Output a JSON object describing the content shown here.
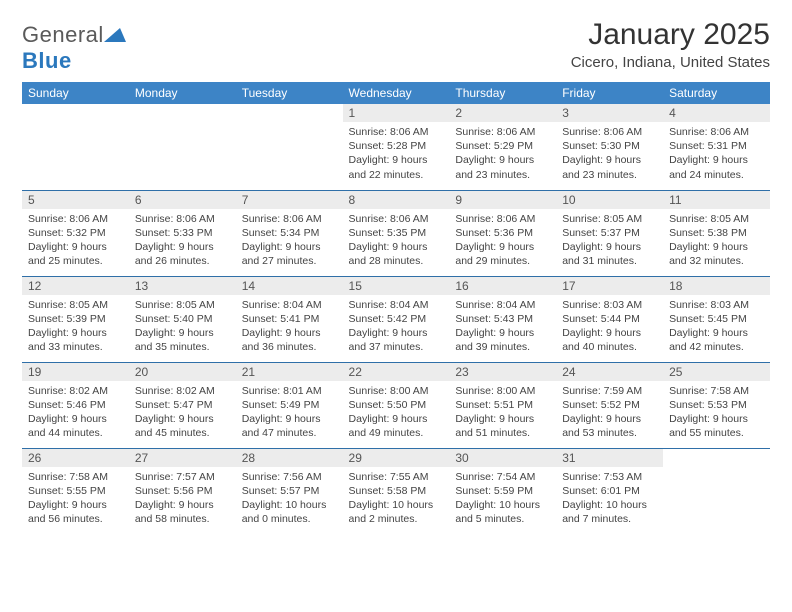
{
  "logo": {
    "part1": "General",
    "part2": "Blue",
    "triangle_color": "#2b78bd"
  },
  "title": "January 2025",
  "location": "Cicero, Indiana, United States",
  "header_bg": "#3d84c6",
  "daynum_bg": "#ececec",
  "border_color": "#2f6fa8",
  "weekdays": [
    "Sunday",
    "Monday",
    "Tuesday",
    "Wednesday",
    "Thursday",
    "Friday",
    "Saturday"
  ],
  "weeks": [
    [
      null,
      null,
      null,
      {
        "n": "1",
        "sunrise": "8:06 AM",
        "sunset": "5:28 PM",
        "daylight": "9 hours and 22 minutes."
      },
      {
        "n": "2",
        "sunrise": "8:06 AM",
        "sunset": "5:29 PM",
        "daylight": "9 hours and 23 minutes."
      },
      {
        "n": "3",
        "sunrise": "8:06 AM",
        "sunset": "5:30 PM",
        "daylight": "9 hours and 23 minutes."
      },
      {
        "n": "4",
        "sunrise": "8:06 AM",
        "sunset": "5:31 PM",
        "daylight": "9 hours and 24 minutes."
      }
    ],
    [
      {
        "n": "5",
        "sunrise": "8:06 AM",
        "sunset": "5:32 PM",
        "daylight": "9 hours and 25 minutes."
      },
      {
        "n": "6",
        "sunrise": "8:06 AM",
        "sunset": "5:33 PM",
        "daylight": "9 hours and 26 minutes."
      },
      {
        "n": "7",
        "sunrise": "8:06 AM",
        "sunset": "5:34 PM",
        "daylight": "9 hours and 27 minutes."
      },
      {
        "n": "8",
        "sunrise": "8:06 AM",
        "sunset": "5:35 PM",
        "daylight": "9 hours and 28 minutes."
      },
      {
        "n": "9",
        "sunrise": "8:06 AM",
        "sunset": "5:36 PM",
        "daylight": "9 hours and 29 minutes."
      },
      {
        "n": "10",
        "sunrise": "8:05 AM",
        "sunset": "5:37 PM",
        "daylight": "9 hours and 31 minutes."
      },
      {
        "n": "11",
        "sunrise": "8:05 AM",
        "sunset": "5:38 PM",
        "daylight": "9 hours and 32 minutes."
      }
    ],
    [
      {
        "n": "12",
        "sunrise": "8:05 AM",
        "sunset": "5:39 PM",
        "daylight": "9 hours and 33 minutes."
      },
      {
        "n": "13",
        "sunrise": "8:05 AM",
        "sunset": "5:40 PM",
        "daylight": "9 hours and 35 minutes."
      },
      {
        "n": "14",
        "sunrise": "8:04 AM",
        "sunset": "5:41 PM",
        "daylight": "9 hours and 36 minutes."
      },
      {
        "n": "15",
        "sunrise": "8:04 AM",
        "sunset": "5:42 PM",
        "daylight": "9 hours and 37 minutes."
      },
      {
        "n": "16",
        "sunrise": "8:04 AM",
        "sunset": "5:43 PM",
        "daylight": "9 hours and 39 minutes."
      },
      {
        "n": "17",
        "sunrise": "8:03 AM",
        "sunset": "5:44 PM",
        "daylight": "9 hours and 40 minutes."
      },
      {
        "n": "18",
        "sunrise": "8:03 AM",
        "sunset": "5:45 PM",
        "daylight": "9 hours and 42 minutes."
      }
    ],
    [
      {
        "n": "19",
        "sunrise": "8:02 AM",
        "sunset": "5:46 PM",
        "daylight": "9 hours and 44 minutes."
      },
      {
        "n": "20",
        "sunrise": "8:02 AM",
        "sunset": "5:47 PM",
        "daylight": "9 hours and 45 minutes."
      },
      {
        "n": "21",
        "sunrise": "8:01 AM",
        "sunset": "5:49 PM",
        "daylight": "9 hours and 47 minutes."
      },
      {
        "n": "22",
        "sunrise": "8:00 AM",
        "sunset": "5:50 PM",
        "daylight": "9 hours and 49 minutes."
      },
      {
        "n": "23",
        "sunrise": "8:00 AM",
        "sunset": "5:51 PM",
        "daylight": "9 hours and 51 minutes."
      },
      {
        "n": "24",
        "sunrise": "7:59 AM",
        "sunset": "5:52 PM",
        "daylight": "9 hours and 53 minutes."
      },
      {
        "n": "25",
        "sunrise": "7:58 AM",
        "sunset": "5:53 PM",
        "daylight": "9 hours and 55 minutes."
      }
    ],
    [
      {
        "n": "26",
        "sunrise": "7:58 AM",
        "sunset": "5:55 PM",
        "daylight": "9 hours and 56 minutes."
      },
      {
        "n": "27",
        "sunrise": "7:57 AM",
        "sunset": "5:56 PM",
        "daylight": "9 hours and 58 minutes."
      },
      {
        "n": "28",
        "sunrise": "7:56 AM",
        "sunset": "5:57 PM",
        "daylight": "10 hours and 0 minutes."
      },
      {
        "n": "29",
        "sunrise": "7:55 AM",
        "sunset": "5:58 PM",
        "daylight": "10 hours and 2 minutes."
      },
      {
        "n": "30",
        "sunrise": "7:54 AM",
        "sunset": "5:59 PM",
        "daylight": "10 hours and 5 minutes."
      },
      {
        "n": "31",
        "sunrise": "7:53 AM",
        "sunset": "6:01 PM",
        "daylight": "10 hours and 7 minutes."
      },
      null
    ]
  ]
}
